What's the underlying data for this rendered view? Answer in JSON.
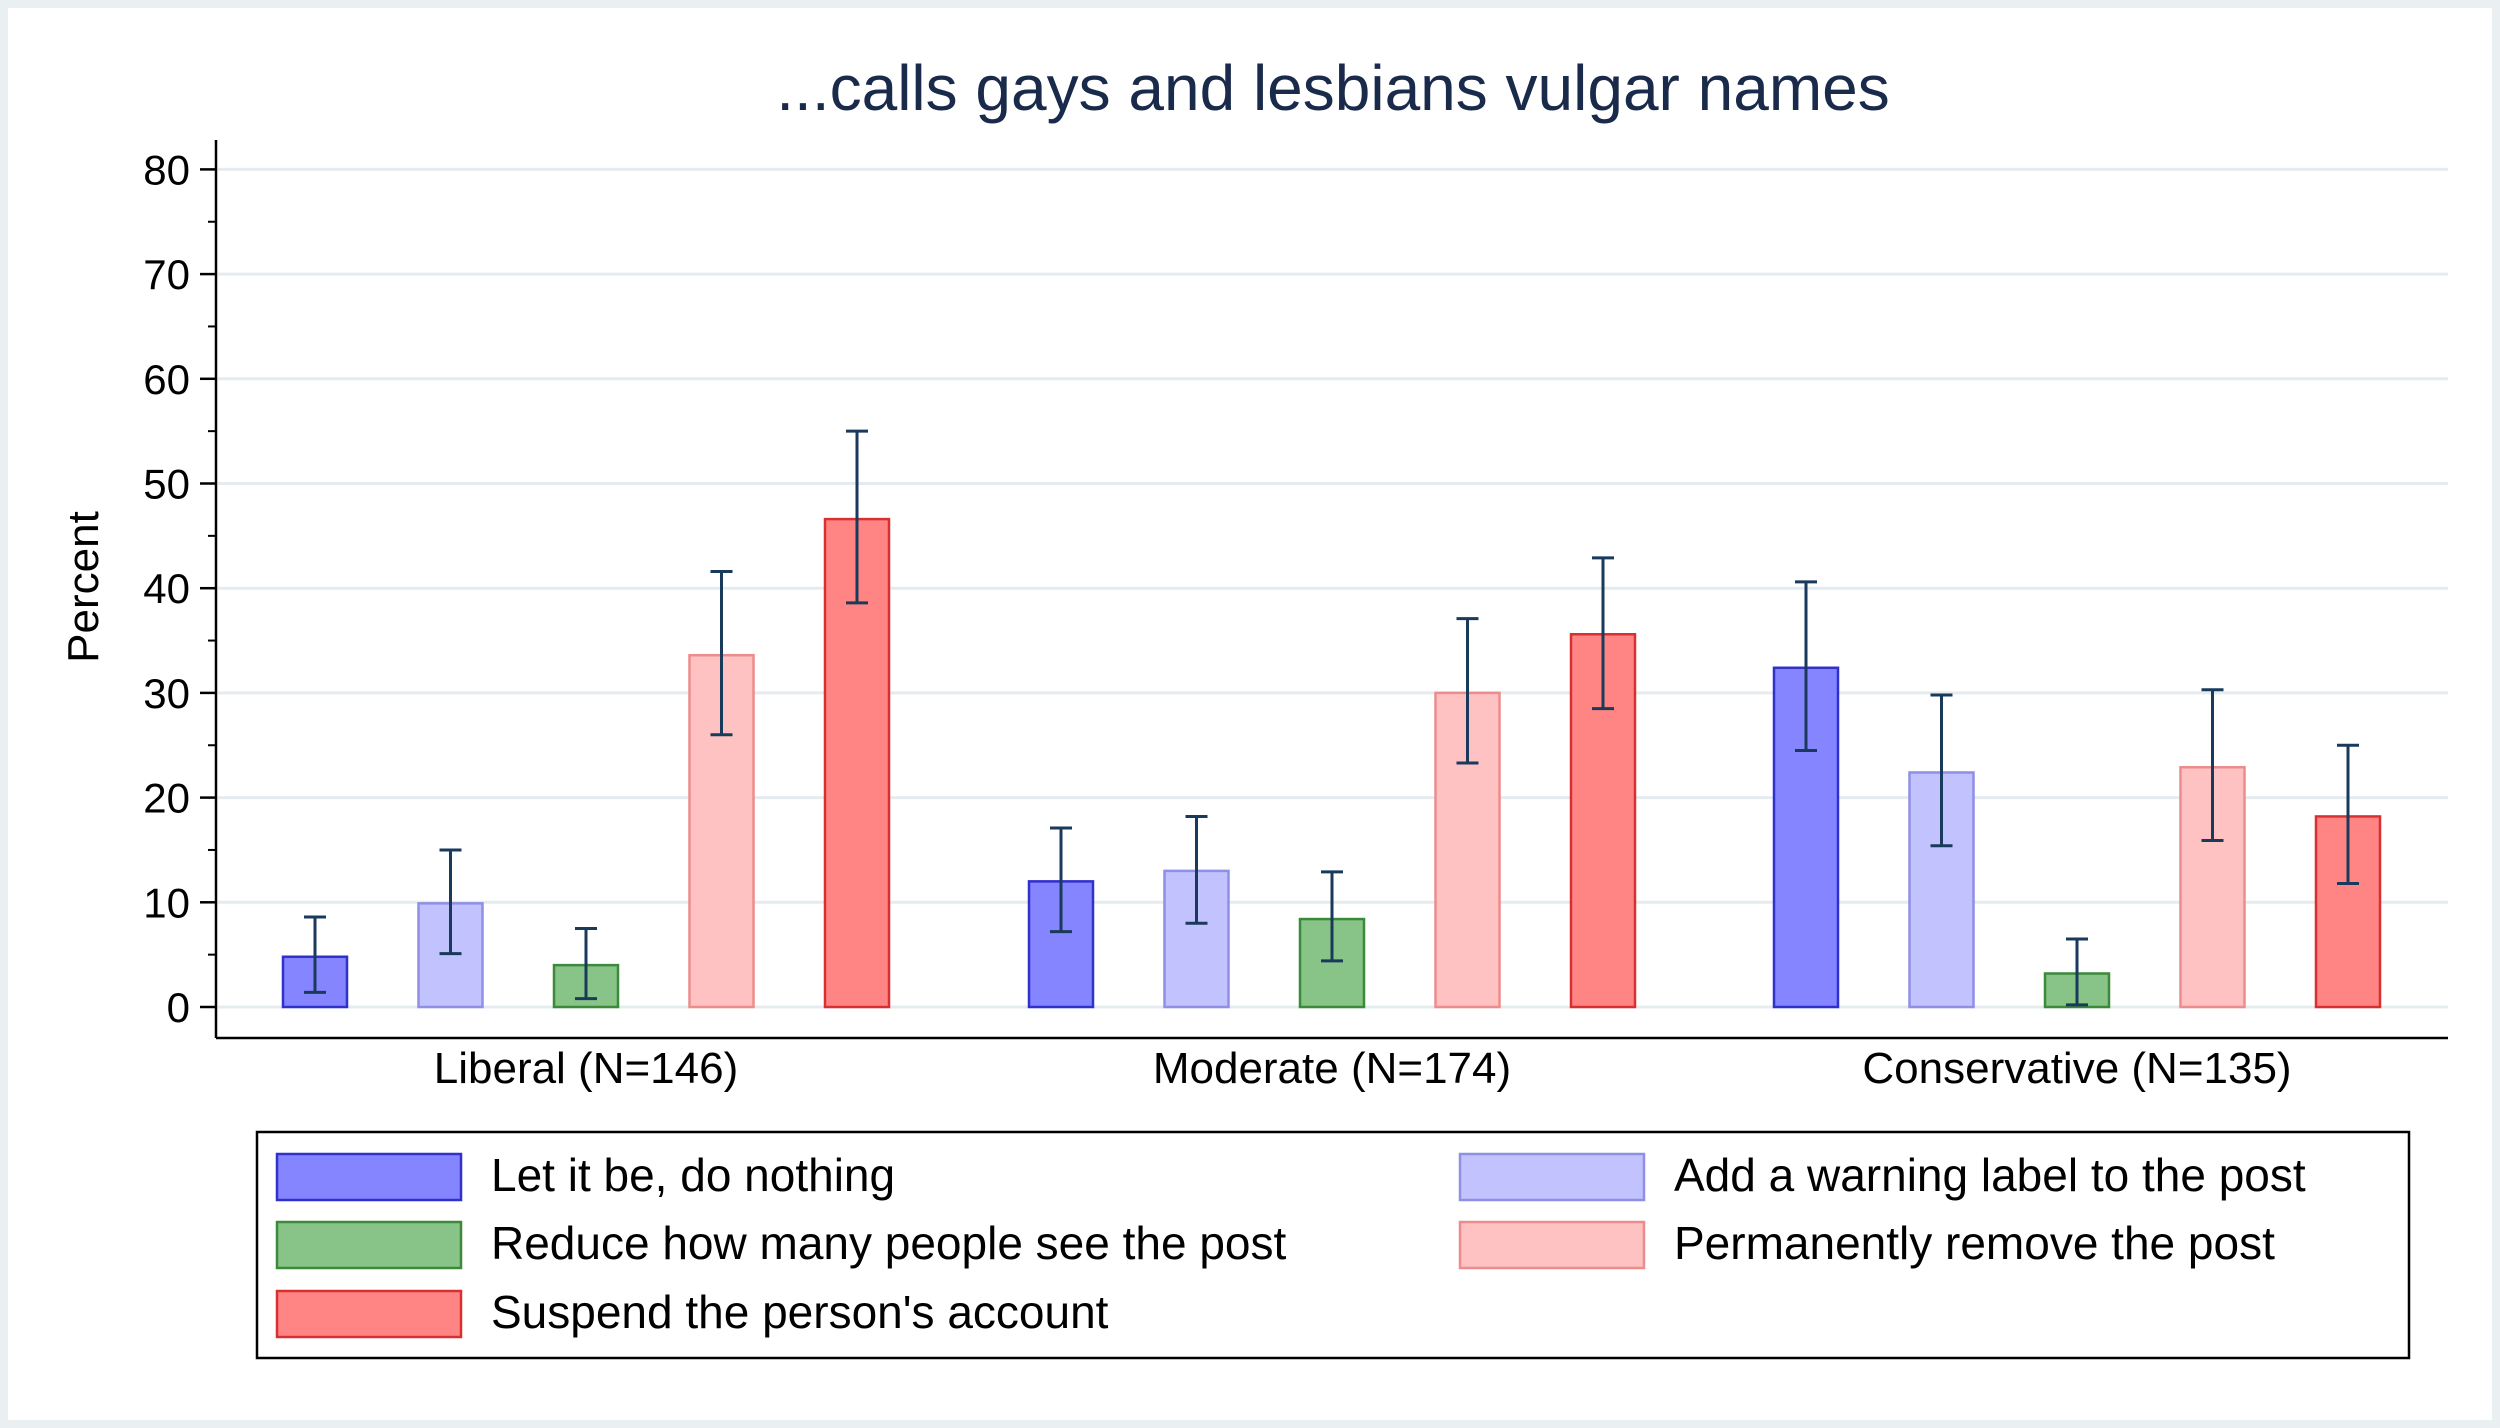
{
  "chart_data": {
    "type": "bar",
    "title": "...calls gays and lesbians vulgar names",
    "xlabel": "",
    "ylabel": "Percent",
    "ylim": [
      0,
      80
    ],
    "yticks": [
      0,
      10,
      20,
      30,
      40,
      50,
      60,
      70,
      80
    ],
    "grid": true,
    "legend_placement": "bottom",
    "categories": [
      "Liberal (N=146)",
      "Moderate (N=174)",
      "Conservative (N=135)"
    ],
    "series": [
      {
        "name": "Let it be, do nothing",
        "color": "#8585ff",
        "edge": "#3030cc",
        "values": [
          4.8,
          12.0,
          32.4
        ],
        "ci_low": [
          1.4,
          7.2,
          24.5
        ],
        "ci_high": [
          8.6,
          17.1,
          40.6
        ]
      },
      {
        "name": "Add a warning label to the post",
        "color": "#c2c2ff",
        "edge": "#8f8fe6",
        "values": [
          9.9,
          13.0,
          22.4
        ],
        "ci_low": [
          5.1,
          8.0,
          15.4
        ],
        "ci_high": [
          15.0,
          18.2,
          29.8
        ]
      },
      {
        "name": "Reduce how many people see the post",
        "color": "#88c488",
        "edge": "#3a8a3a",
        "values": [
          4.0,
          8.4,
          3.2
        ],
        "ci_low": [
          0.8,
          4.4,
          0.2
        ],
        "ci_high": [
          7.5,
          12.9,
          6.5
        ]
      },
      {
        "name": "Permanently remove the post",
        "color": "#ffc2c2",
        "edge": "#ec8c8c",
        "values": [
          33.6,
          30.0,
          22.9
        ],
        "ci_low": [
          26.0,
          23.3,
          15.9
        ],
        "ci_high": [
          41.6,
          37.1,
          30.3
        ]
      },
      {
        "name": "Suspend the person's account",
        "color": "#ff8585",
        "edge": "#d83030",
        "values": [
          46.6,
          35.6,
          18.2
        ],
        "ci_low": [
          38.6,
          28.5,
          11.8
        ],
        "ci_high": [
          55.0,
          42.9,
          25.0
        ]
      }
    ],
    "errorbar_color": "#1a3a5c"
  }
}
